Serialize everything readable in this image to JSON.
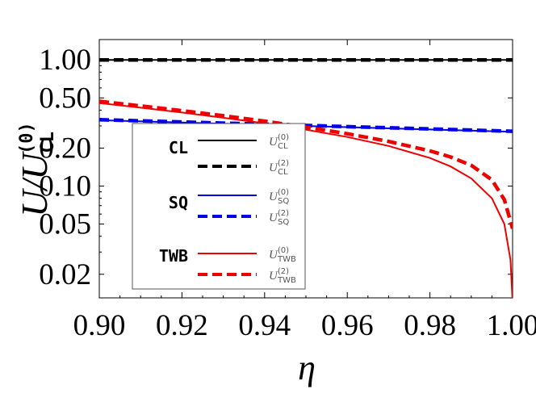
{
  "chart_data": {
    "type": "line",
    "title": "",
    "xlabel": "η",
    "ylabel": {
      "base": "U/U",
      "sub": "CL",
      "sup": "(0)"
    },
    "xlim": [
      0.9,
      1.0
    ],
    "ylim": [
      0.013,
      1.45
    ],
    "yscale": "log",
    "x_ticks": [
      0.9,
      0.92,
      0.94,
      0.96,
      0.98,
      1.0
    ],
    "x_tick_labels": [
      "0.90",
      "0.92",
      "0.94",
      "0.96",
      "0.98",
      "1.00"
    ],
    "y_ticks": [
      0.02,
      0.05,
      0.1,
      0.2,
      0.5,
      1.0
    ],
    "y_tick_labels": [
      "0.02",
      "0.05",
      "0.10",
      "0.20",
      "0.50",
      "1.00"
    ],
    "legend_groups": [
      {
        "label": "CL",
        "entries": [
          {
            "base": "U",
            "sub": "CL",
            "sup": "(0)"
          },
          {
            "base": "U",
            "sub": "CL",
            "sup": "(2)"
          }
        ]
      },
      {
        "label": "SQ",
        "entries": [
          {
            "base": "U",
            "sub": "SQ",
            "sup": "(0)"
          },
          {
            "base": "U",
            "sub": "SQ",
            "sup": "(2)"
          }
        ]
      },
      {
        "label": "TWB",
        "entries": [
          {
            "base": "U",
            "sub": "TWB",
            "sup": "(0)"
          },
          {
            "base": "U",
            "sub": "TWB",
            "sup": "(2)"
          }
        ]
      }
    ],
    "legend_placement": "bottom-left",
    "series": [
      {
        "name": "U_CL^(0)",
        "color": "#000000",
        "dash": "solid",
        "x": [
          0.9,
          1.0
        ],
        "y": [
          1.0,
          1.0
        ]
      },
      {
        "name": "U_CL^(2)",
        "color": "#000000",
        "dash": "dashed",
        "x": [
          0.9,
          1.0
        ],
        "y": [
          1.0,
          1.0
        ]
      },
      {
        "name": "U_SQ^(0)",
        "color": "#0000ee",
        "dash": "solid",
        "x": [
          0.9,
          0.92,
          0.94,
          0.96,
          0.98,
          1.0
        ],
        "y": [
          0.333,
          0.319,
          0.306,
          0.293,
          0.281,
          0.269
        ]
      },
      {
        "name": "U_SQ^(2)",
        "color": "#0000ee",
        "dash": "dashed",
        "x": [
          0.9,
          0.92,
          0.94,
          0.96,
          0.98,
          1.0
        ],
        "y": [
          0.336,
          0.322,
          0.309,
          0.296,
          0.284,
          0.272
        ]
      },
      {
        "name": "U_TWB^(0)",
        "color": "#ee0000",
        "dash": "solid",
        "x": [
          0.9,
          0.91,
          0.92,
          0.93,
          0.94,
          0.95,
          0.96,
          0.97,
          0.98,
          0.985,
          0.99,
          0.995,
          0.998,
          0.9995,
          1.0
        ],
        "y": [
          0.455,
          0.418,
          0.383,
          0.348,
          0.314,
          0.28,
          0.245,
          0.208,
          0.167,
          0.143,
          0.115,
          0.08,
          0.05,
          0.026,
          0.012
        ]
      },
      {
        "name": "U_TWB^(2)",
        "color": "#ee0000",
        "dash": "dashed",
        "x": [
          0.9,
          0.91,
          0.92,
          0.93,
          0.94,
          0.95,
          0.96,
          0.97,
          0.98,
          0.985,
          0.99,
          0.995,
          0.998,
          1.0
        ],
        "y": [
          0.47,
          0.432,
          0.396,
          0.361,
          0.327,
          0.293,
          0.26,
          0.226,
          0.19,
          0.17,
          0.146,
          0.112,
          0.078,
          0.046
        ]
      }
    ]
  }
}
